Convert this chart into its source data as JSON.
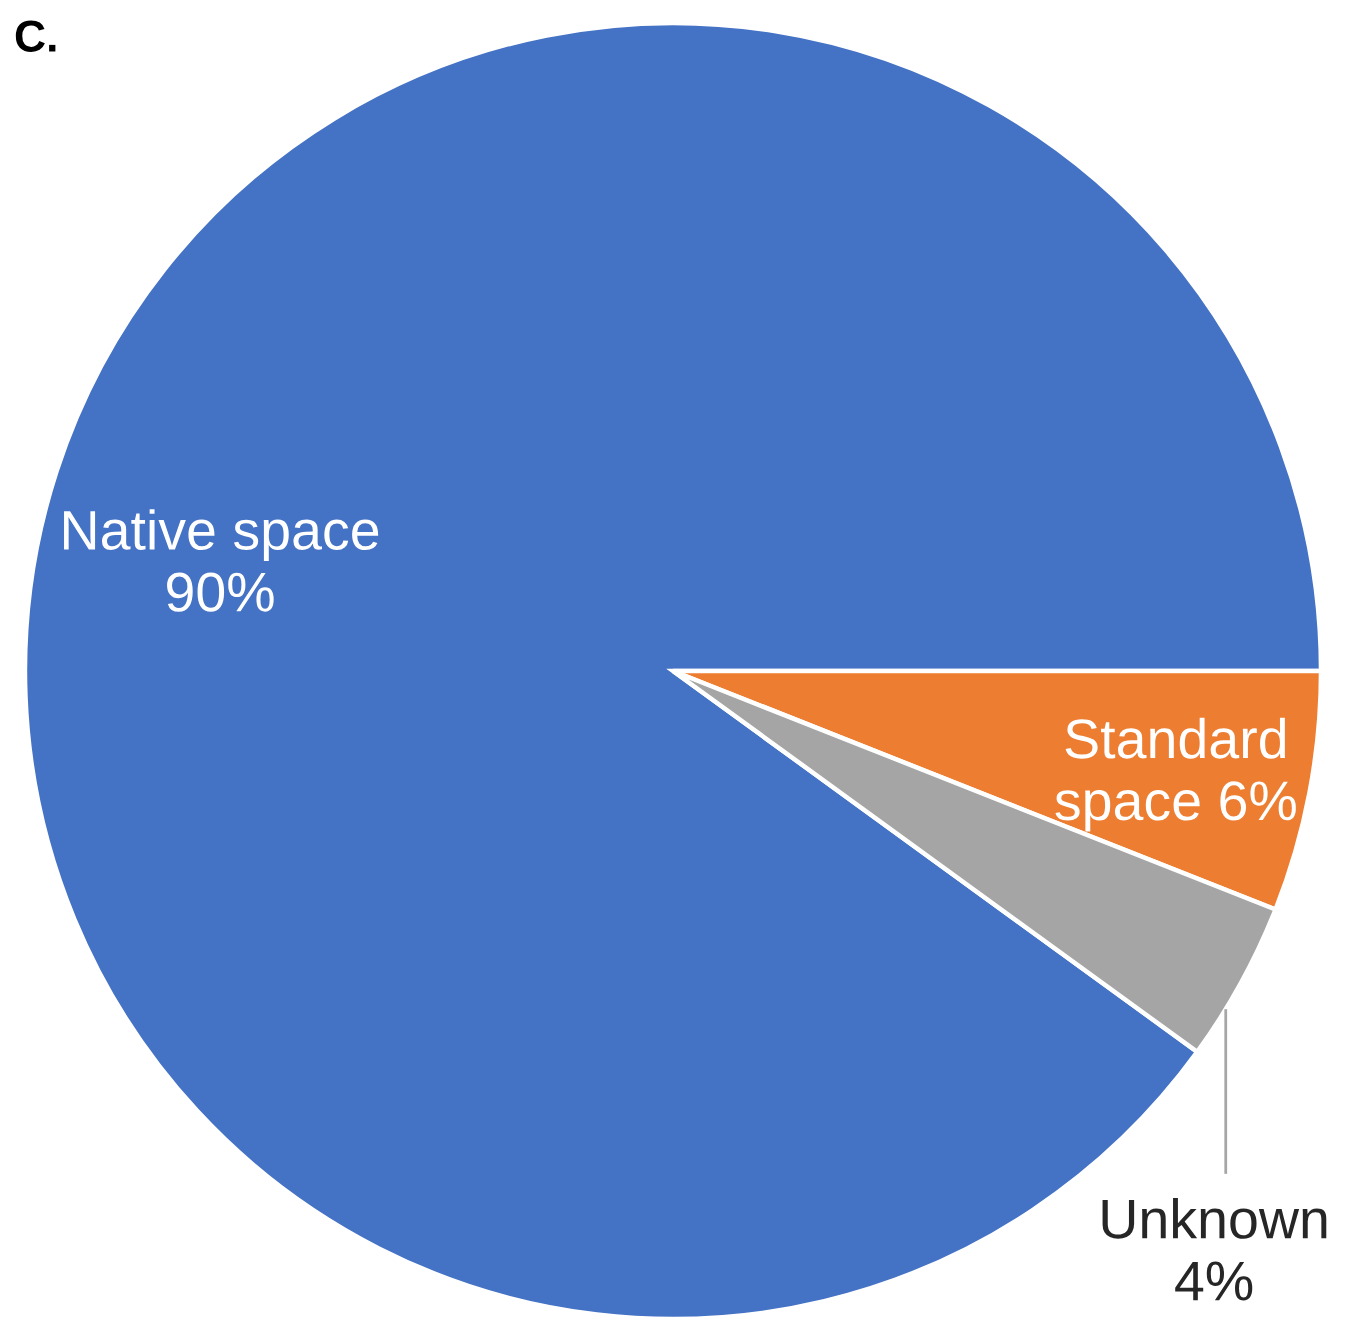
{
  "chart_data": {
    "type": "pie",
    "title": "C.",
    "categories": [
      "Native space",
      "Standard space",
      "Unknown"
    ],
    "values": [
      90,
      6,
      4
    ],
    "value_labels": [
      "90%",
      "6%",
      "4%"
    ],
    "colors": [
      "#4472c4",
      "#ed7d31",
      "#a5a5a5"
    ]
  }
}
